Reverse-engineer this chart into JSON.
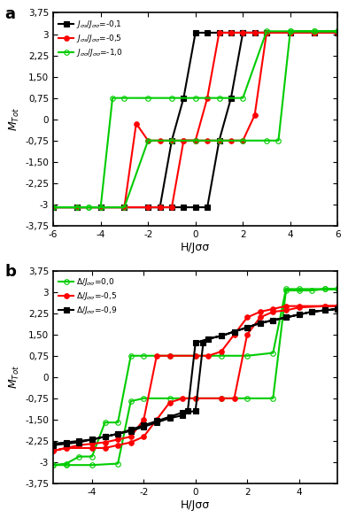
{
  "panel_a": {
    "title": "a",
    "xlabel": "H/Jσσ",
    "xlim": [
      -6,
      6
    ],
    "ylim": [
      -3.75,
      3.75
    ],
    "yticks": [
      -3.75,
      -3.0,
      -2.25,
      -1.5,
      -0.75,
      0.0,
      0.75,
      1.5,
      2.25,
      3.0,
      3.75
    ],
    "xticks": [
      -6,
      -4,
      -2,
      0,
      2,
      4,
      6
    ],
    "series": [
      {
        "label": "J_{\\sigma s}/J_{\\sigma\\sigma}=-0{,}1",
        "color": "black",
        "marker": "s",
        "filled": true,
        "loop": [
          [
            -6,
            -3.1
          ],
          [
            -5,
            -3.1
          ],
          [
            -4,
            -3.1
          ],
          [
            -3,
            -3.1
          ],
          [
            -2,
            -3.1
          ],
          [
            -1,
            -3.1
          ],
          [
            -0.5,
            -3.1
          ],
          [
            0,
            -3.1
          ],
          [
            0.5,
            -3.1
          ],
          [
            1,
            -0.75
          ],
          [
            1.5,
            0.75
          ],
          [
            2,
            3.05
          ],
          [
            3,
            3.05
          ],
          [
            4,
            3.05
          ],
          [
            5,
            3.05
          ],
          [
            6,
            3.05
          ],
          [
            5,
            3.05
          ],
          [
            4,
            3.05
          ],
          [
            3,
            3.05
          ],
          [
            2.5,
            3.05
          ],
          [
            2,
            3.05
          ],
          [
            1.5,
            3.05
          ],
          [
            1,
            3.05
          ],
          [
            0.5,
            3.05
          ],
          [
            0,
            3.05
          ],
          [
            -0.5,
            0.75
          ],
          [
            -1,
            -0.75
          ],
          [
            -1.5,
            -3.1
          ],
          [
            -2,
            -3.1
          ],
          [
            -3,
            -3.1
          ],
          [
            -4,
            -3.1
          ],
          [
            -5,
            -3.1
          ],
          [
            -6,
            -3.1
          ]
        ]
      },
      {
        "label": "J_{\\sigma s}/J_{\\sigma\\sigma}=-0{,}5",
        "color": "red",
        "marker": "o",
        "filled": true,
        "loop": [
          [
            -6,
            -3.1
          ],
          [
            -5,
            -3.1
          ],
          [
            -4,
            -3.1
          ],
          [
            -3,
            -3.1
          ],
          [
            -2,
            -3.1
          ],
          [
            -1.5,
            -3.1
          ],
          [
            -1,
            -3.1
          ],
          [
            -0.5,
            -0.75
          ],
          [
            0,
            -0.75
          ],
          [
            0.5,
            -0.75
          ],
          [
            1,
            -0.75
          ],
          [
            1.5,
            -0.75
          ],
          [
            2,
            -0.75
          ],
          [
            2.5,
            0.15
          ],
          [
            3,
            3.05
          ],
          [
            4,
            3.05
          ],
          [
            5,
            3.05
          ],
          [
            6,
            3.05
          ],
          [
            5,
            3.05
          ],
          [
            4,
            3.05
          ],
          [
            3,
            3.05
          ],
          [
            2.5,
            3.05
          ],
          [
            2,
            3.05
          ],
          [
            1.5,
            3.05
          ],
          [
            1,
            3.05
          ],
          [
            0.5,
            0.75
          ],
          [
            0,
            -0.75
          ],
          [
            -0.5,
            -0.75
          ],
          [
            -1,
            -0.75
          ],
          [
            -1.5,
            -0.75
          ],
          [
            -2,
            -0.75
          ],
          [
            -2.5,
            -0.15
          ],
          [
            -3,
            -3.1
          ],
          [
            -4,
            -3.1
          ],
          [
            -5,
            -3.1
          ],
          [
            -6,
            -3.1
          ]
        ]
      },
      {
        "label": "J_{\\sigma\\sigma}/J_{\\sigma\\sigma}=-1{,}0",
        "color": "#00cc00",
        "marker": "o",
        "filled": false,
        "loop": [
          [
            -6,
            -3.1
          ],
          [
            -5,
            -3.1
          ],
          [
            -4.5,
            -3.1
          ],
          [
            -4,
            -3.1
          ],
          [
            -3.5,
            0.75
          ],
          [
            -3,
            0.75
          ],
          [
            -2,
            0.75
          ],
          [
            -1,
            0.75
          ],
          [
            0,
            0.75
          ],
          [
            1,
            0.75
          ],
          [
            2,
            0.75
          ],
          [
            3,
            3.1
          ],
          [
            4,
            3.1
          ],
          [
            5,
            3.1
          ],
          [
            6,
            3.1
          ],
          [
            5,
            3.1
          ],
          [
            4,
            3.1
          ],
          [
            3.5,
            -0.75
          ],
          [
            3,
            -0.75
          ],
          [
            2,
            -0.75
          ],
          [
            1,
            -0.75
          ],
          [
            0,
            -0.75
          ],
          [
            -1,
            -0.75
          ],
          [
            -2,
            -0.75
          ],
          [
            -3,
            -3.1
          ],
          [
            -4,
            -3.1
          ],
          [
            -4.5,
            -3.1
          ],
          [
            -5,
            -3.1
          ],
          [
            -6,
            -3.1
          ]
        ]
      }
    ]
  },
  "panel_b": {
    "title": "b",
    "xlabel": "H/Jσσ",
    "xlim": [
      -5.5,
      5.5
    ],
    "ylim": [
      -3.75,
      3.75
    ],
    "yticks": [
      -3.75,
      -3.0,
      -2.25,
      -1.5,
      -0.75,
      0.0,
      0.75,
      1.5,
      2.25,
      3.0,
      3.75
    ],
    "xticks": [
      -4,
      -2,
      0,
      2,
      4
    ],
    "series": [
      {
        "label": "\\Delta/J_{\\sigma\\sigma}=0{,}0",
        "color": "#00cc00",
        "marker": "o",
        "filled": false,
        "loop": [
          [
            -5.5,
            -3.1
          ],
          [
            -5,
            -3.05
          ],
          [
            -4.5,
            -2.8
          ],
          [
            -4,
            -2.8
          ],
          [
            -3.5,
            -1.6
          ],
          [
            -3,
            -1.6
          ],
          [
            -2.5,
            0.75
          ],
          [
            -2,
            0.75
          ],
          [
            -1,
            0.75
          ],
          [
            0,
            0.75
          ],
          [
            1,
            0.75
          ],
          [
            2,
            0.75
          ],
          [
            3,
            0.85
          ],
          [
            3.5,
            3.1
          ],
          [
            4,
            3.1
          ],
          [
            5,
            3.1
          ],
          [
            5.5,
            3.1
          ],
          [
            5,
            3.1
          ],
          [
            4.5,
            3.05
          ],
          [
            4,
            3.05
          ],
          [
            3.5,
            3.05
          ],
          [
            3,
            -0.75
          ],
          [
            2,
            -0.75
          ],
          [
            1,
            -0.75
          ],
          [
            0,
            -0.75
          ],
          [
            -1,
            -0.75
          ],
          [
            -2,
            -0.75
          ],
          [
            -2.5,
            -0.85
          ],
          [
            -3,
            -3.05
          ],
          [
            -4,
            -3.1
          ],
          [
            -5,
            -3.1
          ],
          [
            -5.5,
            -3.1
          ]
        ]
      },
      {
        "label": "\\Delta/J_{\\sigma\\sigma}=-0{,}5",
        "color": "red",
        "marker": "o",
        "filled": true,
        "loop": [
          [
            -5.5,
            -2.6
          ],
          [
            -5,
            -2.5
          ],
          [
            -4.5,
            -2.4
          ],
          [
            -4,
            -2.35
          ],
          [
            -3.5,
            -2.3
          ],
          [
            -3,
            -2.2
          ],
          [
            -2.5,
            -2.1
          ],
          [
            -2,
            -1.5
          ],
          [
            -1.5,
            0.75
          ],
          [
            -1,
            0.75
          ],
          [
            0,
            0.75
          ],
          [
            0.5,
            0.75
          ],
          [
            1,
            0.9
          ],
          [
            1.5,
            1.5
          ],
          [
            2,
            2.1
          ],
          [
            2.5,
            2.3
          ],
          [
            3,
            2.4
          ],
          [
            3.5,
            2.5
          ],
          [
            4,
            2.5
          ],
          [
            5,
            2.5
          ],
          [
            5.5,
            2.5
          ],
          [
            5,
            2.5
          ],
          [
            4,
            2.45
          ],
          [
            3.5,
            2.35
          ],
          [
            3,
            2.3
          ],
          [
            2.5,
            2.1
          ],
          [
            2,
            1.5
          ],
          [
            1.5,
            -0.75
          ],
          [
            1,
            -0.75
          ],
          [
            0,
            -0.75
          ],
          [
            -0.5,
            -0.75
          ],
          [
            -1,
            -0.9
          ],
          [
            -1.5,
            -1.5
          ],
          [
            -2,
            -2.1
          ],
          [
            -2.5,
            -2.3
          ],
          [
            -3,
            -2.4
          ],
          [
            -3.5,
            -2.5
          ],
          [
            -4,
            -2.5
          ],
          [
            -5,
            -2.5
          ],
          [
            -5.5,
            -2.6
          ]
        ]
      },
      {
        "label": "\\Delta/J_{\\sigma\\sigma}=-0{,}9",
        "color": "black",
        "marker": "s",
        "filled": true,
        "loop": [
          [
            -5.5,
            -2.35
          ],
          [
            -5,
            -2.3
          ],
          [
            -4.5,
            -2.25
          ],
          [
            -4,
            -2.2
          ],
          [
            -3.5,
            -2.1
          ],
          [
            -3,
            -2.0
          ],
          [
            -2.5,
            -1.85
          ],
          [
            -2,
            -1.7
          ],
          [
            -1.5,
            -1.55
          ],
          [
            -1,
            -1.4
          ],
          [
            -0.5,
            -1.25
          ],
          [
            0,
            -1.2
          ],
          [
            0.3,
            1.2
          ],
          [
            0.5,
            1.35
          ],
          [
            1,
            1.45
          ],
          [
            1.5,
            1.6
          ],
          [
            2,
            1.75
          ],
          [
            2.5,
            1.9
          ],
          [
            3,
            2.0
          ],
          [
            3.5,
            2.1
          ],
          [
            4,
            2.2
          ],
          [
            4.5,
            2.3
          ],
          [
            5,
            2.35
          ],
          [
            5.5,
            2.4
          ],
          [
            5,
            2.35
          ],
          [
            4.5,
            2.3
          ],
          [
            4,
            2.2
          ],
          [
            3.5,
            2.1
          ],
          [
            3,
            2.0
          ],
          [
            2.5,
            1.9
          ],
          [
            2,
            1.75
          ],
          [
            1.5,
            1.6
          ],
          [
            1,
            1.45
          ],
          [
            0.5,
            1.35
          ],
          [
            0,
            1.2
          ],
          [
            -0.3,
            -1.2
          ],
          [
            -0.5,
            -1.35
          ],
          [
            -1,
            -1.45
          ],
          [
            -1.5,
            -1.6
          ],
          [
            -2,
            -1.75
          ],
          [
            -2.5,
            -1.9
          ],
          [
            -3,
            -2.0
          ],
          [
            -3.5,
            -2.1
          ],
          [
            -4,
            -2.2
          ],
          [
            -4.5,
            -2.3
          ],
          [
            -5,
            -2.35
          ],
          [
            -5.5,
            -2.4
          ]
        ]
      }
    ]
  },
  "bg_color": "white",
  "axes_linewidth": 1.2,
  "linewidth": 1.5,
  "markersize": 4
}
